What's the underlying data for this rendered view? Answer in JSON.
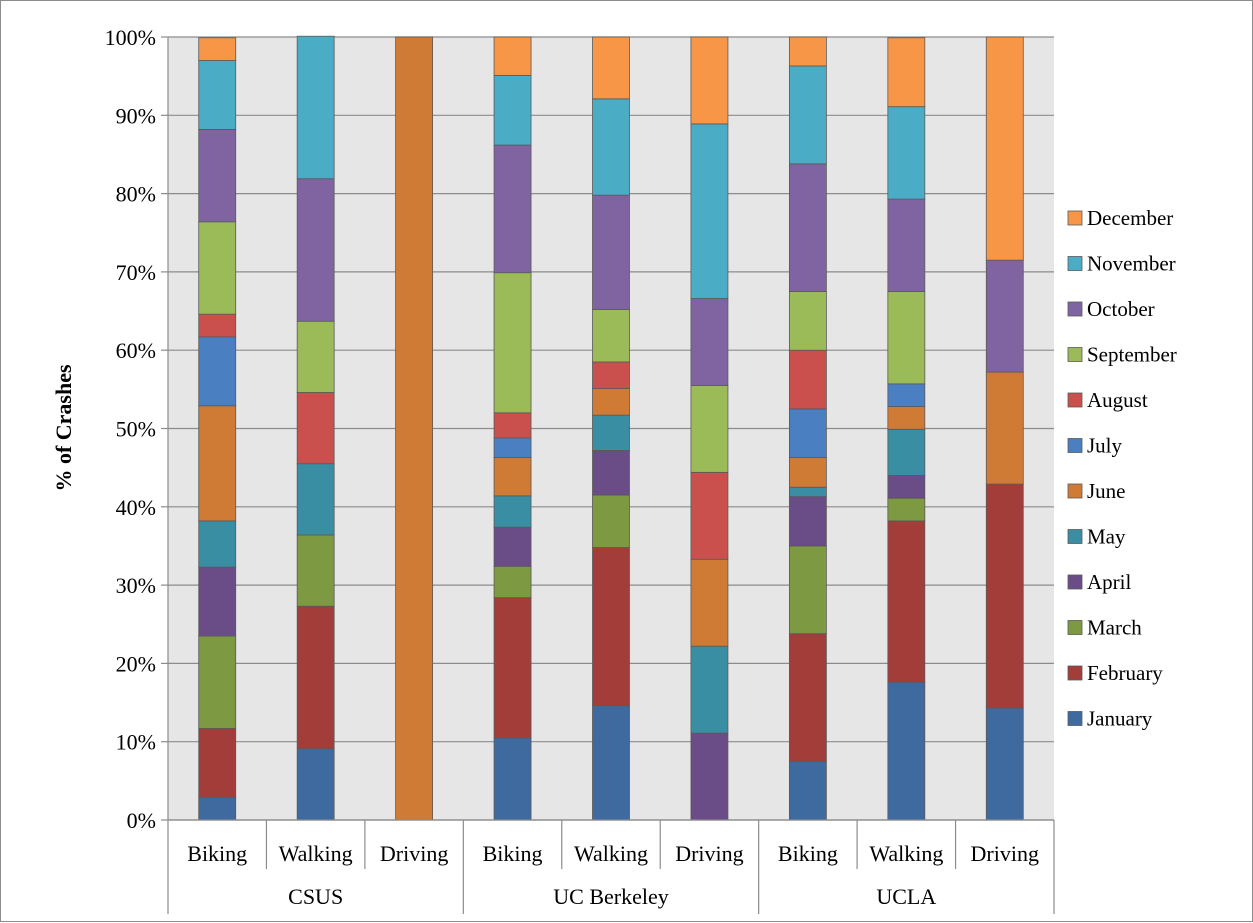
{
  "chart_data": {
    "type": "bar",
    "stacked": true,
    "normalized": true,
    "title": "",
    "xlabel": "",
    "ylabel": "% of Crashes",
    "ylim": [
      0,
      100
    ],
    "yticks": [
      "0%",
      "10%",
      "20%",
      "30%",
      "40%",
      "50%",
      "60%",
      "70%",
      "80%",
      "90%",
      "100%"
    ],
    "grid": true,
    "legend_position": "right",
    "groups": [
      {
        "name": "CSUS",
        "categories": [
          "Biking",
          "Walking",
          "Driving"
        ]
      },
      {
        "name": "UC Berkeley",
        "categories": [
          "Biking",
          "Walking",
          "Driving"
        ]
      },
      {
        "name": "UCLA",
        "categories": [
          "Biking",
          "Walking",
          "Driving"
        ]
      }
    ],
    "series": [
      {
        "name": "January",
        "color": "#3e6aa0",
        "values": [
          2.9,
          9.1,
          0,
          10.5,
          14.6,
          0,
          7.5,
          17.6,
          14.3
        ]
      },
      {
        "name": "February",
        "color": "#a23d3a",
        "values": [
          8.8,
          18.2,
          0,
          17.9,
          20.2,
          0,
          16.3,
          20.6,
          28.6
        ]
      },
      {
        "name": "March",
        "color": "#7d9942",
        "values": [
          11.8,
          9.1,
          0,
          4.0,
          6.7,
          0,
          11.2,
          2.9,
          0
        ]
      },
      {
        "name": "April",
        "color": "#6a4c86",
        "values": [
          8.8,
          0,
          0,
          5.0,
          5.7,
          11.1,
          6.3,
          2.9,
          0
        ]
      },
      {
        "name": "May",
        "color": "#3a8ea3",
        "values": [
          5.9,
          9.1,
          0,
          4.0,
          4.5,
          11.1,
          1.2,
          5.9,
          0
        ]
      },
      {
        "name": "June",
        "color": "#cf7a35",
        "values": [
          14.7,
          0,
          100,
          4.9,
          3.4,
          11.1,
          3.8,
          2.9,
          14.3
        ]
      },
      {
        "name": "July",
        "color": "#4a7fc1",
        "values": [
          8.8,
          0,
          0,
          2.5,
          0,
          0,
          6.2,
          2.9,
          0
        ]
      },
      {
        "name": "August",
        "color": "#c9504d",
        "values": [
          2.9,
          9.1,
          0,
          3.2,
          3.4,
          11.1,
          7.5,
          0,
          0
        ]
      },
      {
        "name": "September",
        "color": "#9bbb59",
        "values": [
          11.8,
          9.1,
          0,
          17.9,
          6.7,
          11.1,
          7.5,
          11.8,
          0
        ]
      },
      {
        "name": "October",
        "color": "#8064a2",
        "values": [
          11.8,
          18.2,
          0,
          16.3,
          14.6,
          11.1,
          16.3,
          11.8,
          14.3
        ]
      },
      {
        "name": "November",
        "color": "#4bacc6",
        "values": [
          8.8,
          18.2,
          0,
          8.9,
          12.3,
          22.3,
          12.5,
          11.8,
          0
        ]
      },
      {
        "name": "December",
        "color": "#f79646",
        "values": [
          2.9,
          0,
          0,
          4.9,
          7.9,
          11.1,
          3.7,
          8.8,
          28.5
        ]
      }
    ]
  }
}
